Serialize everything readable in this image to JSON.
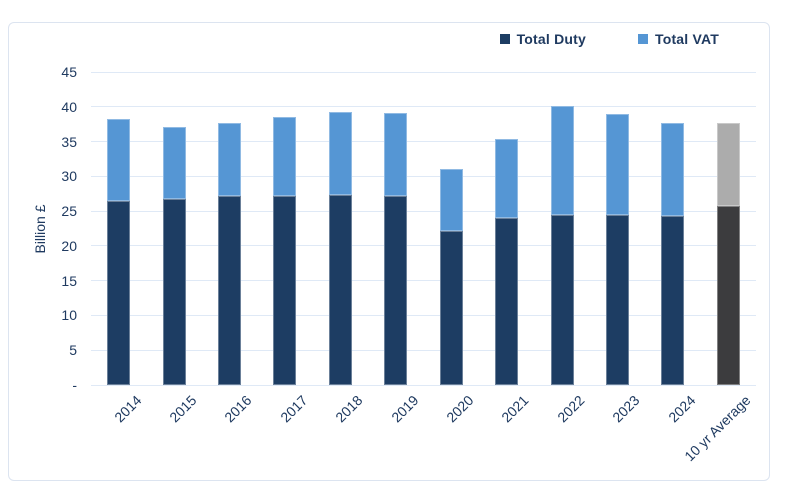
{
  "chart_data": {
    "type": "bar",
    "stacked": true,
    "categories": [
      "2014",
      "2015",
      "2016",
      "2017",
      "2018",
      "2019",
      "2020",
      "2021",
      "2022",
      "2023",
      "2024",
      "10 yr Average"
    ],
    "series": [
      {
        "name": "Total Duty",
        "values": [
          26.4,
          26.7,
          27.2,
          27.2,
          27.3,
          27.2,
          22.1,
          24.0,
          24.4,
          24.5,
          24.3,
          25.7
        ]
      },
      {
        "name": "Total VAT",
        "values": [
          11.9,
          10.4,
          10.4,
          11.3,
          12.0,
          11.9,
          8.9,
          11.3,
          15.7,
          14.4,
          13.4,
          11.9
        ]
      }
    ],
    "totals": [
      38.3,
      37.1,
      37.6,
      38.5,
      39.3,
      39.1,
      31.0,
      35.3,
      40.1,
      38.9,
      37.7,
      37.6
    ],
    "title": "",
    "xlabel": "",
    "ylabel": "Billion £",
    "ylim": [
      0,
      45
    ],
    "ytick_step": 5,
    "y_ticks": [
      {
        "value": 0,
        "label": "-"
      },
      {
        "value": 5,
        "label": "5"
      },
      {
        "value": 10,
        "label": "10"
      },
      {
        "value": 15,
        "label": "15"
      },
      {
        "value": 20,
        "label": "20"
      },
      {
        "value": 25,
        "label": "25"
      },
      {
        "value": 30,
        "label": "30"
      },
      {
        "value": 35,
        "label": "35"
      },
      {
        "value": 40,
        "label": "40"
      },
      {
        "value": 45,
        "label": "45"
      }
    ],
    "grid": true,
    "legend_position": "top-right",
    "average_category": "10 yr Average"
  },
  "colors": {
    "duty": "#1d3d63",
    "vat": "#5596d4",
    "average_duty": "#3c3c3e",
    "average_vat": "#acacac",
    "gridline": "#dfe9f6",
    "card_border": "#dce4f0",
    "text": "#1f3a60",
    "background": "#ffffff"
  }
}
